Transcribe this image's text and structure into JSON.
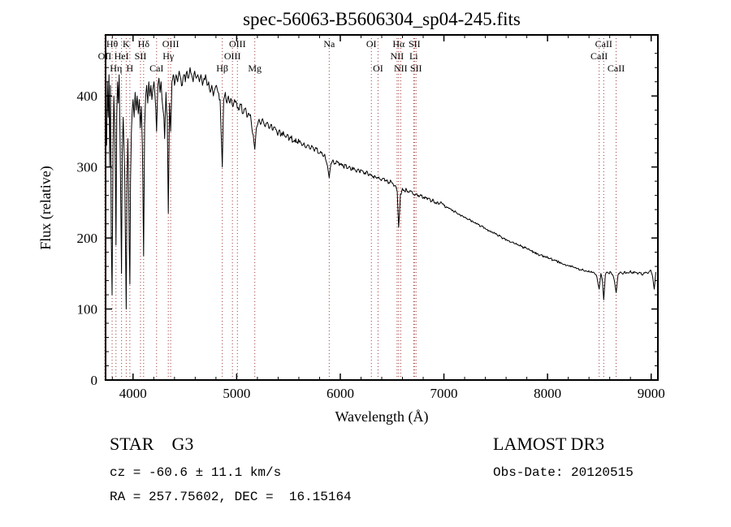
{
  "footer": {
    "class_label": "STAR    G3",
    "survey": "LAMOST DR3",
    "cz": "cz = -60.6 ± 11.1 km/s",
    "obs_date": "Obs-Date: 20120515",
    "coords": "RA = 257.75602, DEC =  16.15164"
  },
  "chart_data": {
    "type": "line",
    "title": "spec-56063-B5606304_sp04-245.fits",
    "xlabel": "Wavelength (Å)",
    "ylabel": "Flux (relative)",
    "xlim": [
      3735,
      9065
    ],
    "ylim": [
      0,
      486
    ],
    "xticks": [
      4000,
      5000,
      6000,
      7000,
      8000,
      9000
    ],
    "yticks": [
      0,
      100,
      200,
      300,
      400
    ],
    "grid": false,
    "legend": "none",
    "line_color": "#000000",
    "marker_color": "#9e3636",
    "lines": [
      {
        "wl": 3727,
        "label": "OII",
        "row": 2
      },
      {
        "wl": 3798,
        "label": "Hθ",
        "row": 1
      },
      {
        "wl": 3835,
        "label": "Hη",
        "row": 3
      },
      {
        "wl": 3889,
        "label": "HeI",
        "row": 2
      },
      {
        "wl": 3934,
        "label": "K",
        "row": 1
      },
      {
        "wl": 3969,
        "label": "H",
        "row": 3
      },
      {
        "wl": 4072,
        "label": "SII",
        "row": 2
      },
      {
        "wl": 4102,
        "label": "Hδ",
        "row": 1
      },
      {
        "wl": 4227,
        "label": "CaI",
        "row": 3
      },
      {
        "wl": 4340,
        "label": "Hγ",
        "row": 2
      },
      {
        "wl": 4363,
        "label": "OIII",
        "row": 1
      },
      {
        "wl": 4861,
        "label": "Hβ",
        "row": 3
      },
      {
        "wl": 4959,
        "label": "OIII",
        "row": 2
      },
      {
        "wl": 5007,
        "label": "OIII",
        "row": 1
      },
      {
        "wl": 5175,
        "label": "Mg",
        "row": 3
      },
      {
        "wl": 5893,
        "label": "Na",
        "row": 1
      },
      {
        "wl": 6300,
        "label": "OI",
        "row": 1
      },
      {
        "wl": 6364,
        "label": "OI",
        "row": 3
      },
      {
        "wl": 6548,
        "label": "NII",
        "row": 2
      },
      {
        "wl": 6563,
        "label": "Hα",
        "row": 1
      },
      {
        "wl": 6583,
        "label": "NII",
        "row": 3
      },
      {
        "wl": 6708,
        "label": "Li",
        "row": 2
      },
      {
        "wl": 6716,
        "label": "SII",
        "row": 1
      },
      {
        "wl": 6731,
        "label": "SII",
        "row": 3
      },
      {
        "wl": 8498,
        "label": "CaII",
        "row": 2
      },
      {
        "wl": 8542,
        "label": "CaII",
        "row": 1
      },
      {
        "wl": 8662,
        "label": "CaII",
        "row": 3
      }
    ],
    "spectrum": [
      [
        3745,
        330
      ],
      [
        3752,
        420
      ],
      [
        3760,
        370
      ],
      [
        3768,
        430
      ],
      [
        3775,
        300
      ],
      [
        3782,
        415
      ],
      [
        3790,
        200
      ],
      [
        3798,
        120
      ],
      [
        3806,
        320
      ],
      [
        3815,
        400
      ],
      [
        3822,
        360
      ],
      [
        3830,
        290
      ],
      [
        3835,
        190
      ],
      [
        3842,
        370
      ],
      [
        3850,
        420
      ],
      [
        3858,
        390
      ],
      [
        3866,
        430
      ],
      [
        3874,
        350
      ],
      [
        3882,
        240
      ],
      [
        3889,
        150
      ],
      [
        3896,
        320
      ],
      [
        3905,
        370
      ],
      [
        3912,
        330
      ],
      [
        3920,
        290
      ],
      [
        3926,
        200
      ],
      [
        3934,
        100
      ],
      [
        3942,
        280
      ],
      [
        3950,
        340
      ],
      [
        3958,
        260
      ],
      [
        3963,
        190
      ],
      [
        3969,
        135
      ],
      [
        3976,
        280
      ],
      [
        3984,
        350
      ],
      [
        3992,
        380
      ],
      [
        4000,
        395
      ],
      [
        4010,
        370
      ],
      [
        4020,
        405
      ],
      [
        4030,
        380
      ],
      [
        4040,
        400
      ],
      [
        4050,
        375
      ],
      [
        4060,
        395
      ],
      [
        4070,
        355
      ],
      [
        4080,
        385
      ],
      [
        4090,
        330
      ],
      [
        4102,
        175
      ],
      [
        4112,
        360
      ],
      [
        4122,
        400
      ],
      [
        4132,
        415
      ],
      [
        4142,
        390
      ],
      [
        4152,
        420
      ],
      [
        4162,
        400
      ],
      [
        4172,
        415
      ],
      [
        4182,
        395
      ],
      [
        4192,
        410
      ],
      [
        4202,
        420
      ],
      [
        4212,
        400
      ],
      [
        4227,
        350
      ],
      [
        4240,
        415
      ],
      [
        4250,
        425
      ],
      [
        4260,
        405
      ],
      [
        4270,
        420
      ],
      [
        4280,
        395
      ],
      [
        4290,
        380
      ],
      [
        4305,
        340
      ],
      [
        4318,
        405
      ],
      [
        4330,
        370
      ],
      [
        4340,
        235
      ],
      [
        4352,
        390
      ],
      [
        4363,
        350
      ],
      [
        4375,
        420
      ],
      [
        4388,
        430
      ],
      [
        4400,
        415
      ],
      [
        4415,
        430
      ],
      [
        4430,
        420
      ],
      [
        4445,
        435
      ],
      [
        4460,
        425
      ],
      [
        4475,
        415
      ],
      [
        4490,
        430
      ],
      [
        4505,
        420
      ],
      [
        4520,
        435
      ],
      [
        4535,
        425
      ],
      [
        4550,
        440
      ],
      [
        4565,
        430
      ],
      [
        4580,
        420
      ],
      [
        4595,
        435
      ],
      [
        4610,
        425
      ],
      [
        4625,
        430
      ],
      [
        4640,
        420
      ],
      [
        4655,
        430
      ],
      [
        4670,
        415
      ],
      [
        4685,
        425
      ],
      [
        4700,
        430
      ],
      [
        4715,
        415
      ],
      [
        4730,
        420
      ],
      [
        4745,
        405
      ],
      [
        4760,
        415
      ],
      [
        4775,
        400
      ],
      [
        4790,
        410
      ],
      [
        4805,
        415
      ],
      [
        4820,
        405
      ],
      [
        4840,
        395
      ],
      [
        4861,
        300
      ],
      [
        4875,
        395
      ],
      [
        4890,
        405
      ],
      [
        4905,
        390
      ],
      [
        4920,
        400
      ],
      [
        4935,
        390
      ],
      [
        4950,
        395
      ],
      [
        4965,
        385
      ],
      [
        4980,
        395
      ],
      [
        5000,
        390
      ],
      [
        5020,
        380
      ],
      [
        5040,
        388
      ],
      [
        5060,
        375
      ],
      [
        5080,
        382
      ],
      [
        5100,
        370
      ],
      [
        5120,
        375
      ],
      [
        5140,
        365
      ],
      [
        5160,
        345
      ],
      [
        5175,
        325
      ],
      [
        5190,
        355
      ],
      [
        5210,
        365
      ],
      [
        5230,
        360
      ],
      [
        5250,
        368
      ],
      [
        5270,
        358
      ],
      [
        5290,
        362
      ],
      [
        5310,
        355
      ],
      [
        5330,
        360
      ],
      [
        5350,
        352
      ],
      [
        5370,
        356
      ],
      [
        5390,
        348
      ],
      [
        5410,
        352
      ],
      [
        5430,
        345
      ],
      [
        5450,
        350
      ],
      [
        5470,
        342
      ],
      [
        5490,
        346
      ],
      [
        5510,
        340
      ],
      [
        5530,
        344
      ],
      [
        5550,
        336
      ],
      [
        5570,
        340
      ],
      [
        5590,
        333
      ],
      [
        5610,
        337
      ],
      [
        5630,
        330
      ],
      [
        5650,
        334
      ],
      [
        5670,
        327
      ],
      [
        5690,
        331
      ],
      [
        5710,
        325
      ],
      [
        5730,
        329
      ],
      [
        5750,
        322
      ],
      [
        5770,
        326
      ],
      [
        5790,
        319
      ],
      [
        5810,
        322
      ],
      [
        5830,
        316
      ],
      [
        5850,
        318
      ],
      [
        5870,
        305
      ],
      [
        5893,
        285
      ],
      [
        5910,
        305
      ],
      [
        5930,
        310
      ],
      [
        5950,
        305
      ],
      [
        5970,
        308
      ],
      [
        5990,
        302
      ],
      [
        6010,
        305
      ],
      [
        6030,
        300
      ],
      [
        6050,
        303
      ],
      [
        6070,
        298
      ],
      [
        6090,
        301
      ],
      [
        6110,
        296
      ],
      [
        6130,
        299
      ],
      [
        6150,
        294
      ],
      [
        6170,
        297
      ],
      [
        6190,
        292
      ],
      [
        6210,
        295
      ],
      [
        6230,
        290
      ],
      [
        6250,
        293
      ],
      [
        6270,
        288
      ],
      [
        6290,
        290
      ],
      [
        6310,
        286
      ],
      [
        6330,
        288
      ],
      [
        6350,
        284
      ],
      [
        6370,
        286
      ],
      [
        6390,
        282
      ],
      [
        6410,
        284
      ],
      [
        6430,
        280
      ],
      [
        6450,
        282
      ],
      [
        6470,
        278
      ],
      [
        6490,
        280
      ],
      [
        6510,
        276
      ],
      [
        6530,
        274
      ],
      [
        6550,
        265
      ],
      [
        6563,
        215
      ],
      [
        6580,
        262
      ],
      [
        6600,
        270
      ],
      [
        6620,
        266
      ],
      [
        6640,
        268
      ],
      [
        6660,
        264
      ],
      [
        6680,
        266
      ],
      [
        6700,
        262
      ],
      [
        6720,
        260
      ],
      [
        6740,
        262
      ],
      [
        6760,
        258
      ],
      [
        6780,
        260
      ],
      [
        6800,
        256
      ],
      [
        6820,
        258
      ],
      [
        6840,
        254
      ],
      [
        6860,
        256
      ],
      [
        6880,
        252
      ],
      [
        6900,
        253
      ],
      [
        6920,
        250
      ],
      [
        6940,
        251
      ],
      [
        6960,
        248
      ],
      [
        6980,
        249
      ],
      [
        7000,
        246
      ],
      [
        7030,
        243
      ],
      [
        7060,
        241
      ],
      [
        7090,
        238
      ],
      [
        7120,
        236
      ],
      [
        7150,
        233
      ],
      [
        7180,
        231
      ],
      [
        7210,
        229
      ],
      [
        7240,
        226
      ],
      [
        7270,
        224
      ],
      [
        7300,
        221
      ],
      [
        7330,
        219
      ],
      [
        7360,
        217
      ],
      [
        7390,
        214
      ],
      [
        7420,
        212
      ],
      [
        7450,
        210
      ],
      [
        7480,
        207
      ],
      [
        7510,
        205
      ],
      [
        7540,
        203
      ],
      [
        7570,
        200
      ],
      [
        7600,
        198
      ],
      [
        7630,
        196
      ],
      [
        7660,
        194
      ],
      [
        7690,
        192
      ],
      [
        7720,
        190
      ],
      [
        7750,
        188
      ],
      [
        7780,
        186
      ],
      [
        7810,
        184
      ],
      [
        7840,
        182
      ],
      [
        7870,
        180
      ],
      [
        7900,
        178
      ],
      [
        7930,
        176
      ],
      [
        7960,
        175
      ],
      [
        7990,
        173
      ],
      [
        8020,
        171
      ],
      [
        8050,
        169
      ],
      [
        8080,
        168
      ],
      [
        8110,
        166
      ],
      [
        8140,
        164
      ],
      [
        8170,
        163
      ],
      [
        8200,
        161
      ],
      [
        8230,
        160
      ],
      [
        8260,
        158
      ],
      [
        8290,
        157
      ],
      [
        8320,
        155
      ],
      [
        8350,
        154
      ],
      [
        8380,
        153
      ],
      [
        8410,
        152
      ],
      [
        8440,
        152
      ],
      [
        8470,
        148
      ],
      [
        8498,
        128
      ],
      [
        8515,
        150
      ],
      [
        8530,
        140
      ],
      [
        8542,
        113
      ],
      [
        8558,
        148
      ],
      [
        8575,
        152
      ],
      [
        8590,
        150
      ],
      [
        8610,
        152
      ],
      [
        8630,
        148
      ],
      [
        8645,
        140
      ],
      [
        8662,
        123
      ],
      [
        8680,
        148
      ],
      [
        8700,
        152
      ],
      [
        8720,
        150
      ],
      [
        8745,
        153
      ],
      [
        8770,
        151
      ],
      [
        8795,
        153
      ],
      [
        8820,
        150
      ],
      [
        8845,
        152
      ],
      [
        8870,
        149
      ],
      [
        8895,
        151
      ],
      [
        8920,
        148
      ],
      [
        8945,
        152
      ],
      [
        8970,
        150
      ],
      [
        8995,
        155
      ],
      [
        9015,
        145
      ],
      [
        9030,
        128
      ],
      [
        9045,
        152
      ]
    ]
  }
}
